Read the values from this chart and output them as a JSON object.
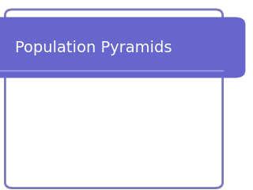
{
  "title": "Population Pyramids",
  "background_color": "#ffffff",
  "banner_color": "#6666cc",
  "banner_text_color": "#ffffff",
  "border_color": "#7777bb",
  "separator_color": "#aaaaee",
  "title_fontsize": 14,
  "fig_width": 3.2,
  "fig_height": 2.4,
  "dpi": 100
}
